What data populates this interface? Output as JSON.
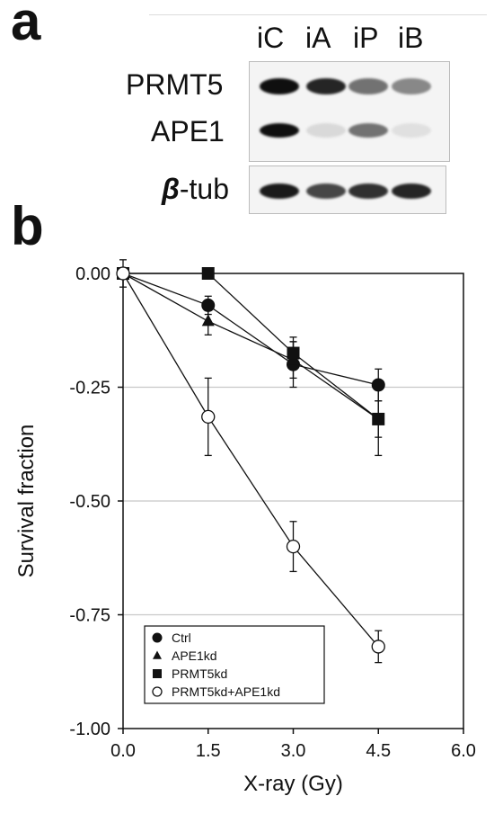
{
  "panel_a": {
    "letter": "a",
    "lanes": [
      "iC",
      "iA",
      "iP",
      "iB"
    ],
    "proteins": [
      "PRMT5",
      "APE1"
    ],
    "loading_control": {
      "greek": "β",
      "suffix": "-tub"
    },
    "band_intensity": {
      "PRMT5": [
        1.0,
        0.9,
        0.55,
        0.45
      ],
      "APE1": [
        1.0,
        0.08,
        0.55,
        0.05
      ],
      "beta-tub": [
        0.95,
        0.75,
        0.85,
        0.9
      ]
    }
  },
  "panel_b": {
    "letter": "b"
  },
  "chart_data": {
    "type": "line",
    "xlabel": "X-ray (Gy)",
    "ylabel": "Survival fraction",
    "xlim": [
      0.0,
      6.0
    ],
    "ylim": [
      -1.0,
      0.0
    ],
    "xticks": [
      "0.0",
      "1.5",
      "3.0",
      "4.5",
      "6.0"
    ],
    "yticks": [
      "0.00",
      "-0.25",
      "-0.50",
      "-0.75",
      "-1.00"
    ],
    "grid": "horizontal",
    "legend_position": "bottom-left",
    "x": [
      0.0,
      1.5,
      3.0,
      4.5
    ],
    "series": [
      {
        "name": "Ctrl",
        "marker": "filled-circle",
        "values": [
          0.0,
          -0.07,
          -0.2,
          -0.245
        ],
        "errors": [
          0.0,
          0.02,
          0.05,
          0.035
        ]
      },
      {
        "name": "APE1kd",
        "marker": "filled-triangle",
        "values": [
          0.0,
          -0.105,
          -0.19,
          -0.32
        ],
        "errors": [
          0.0,
          0.03,
          0.04,
          0.04
        ]
      },
      {
        "name": "PRMT5kd",
        "marker": "filled-square",
        "values": [
          0.0,
          0.0,
          -0.175,
          -0.32
        ],
        "errors": [
          0.03,
          0.0,
          0.035,
          0.08
        ]
      },
      {
        "name": "PRMT5kd+APE1kd",
        "marker": "open-circle",
        "values": [
          0.0,
          -0.315,
          -0.6,
          -0.82
        ],
        "errors": [
          0.0,
          0.085,
          0.055,
          0.035
        ]
      }
    ]
  }
}
